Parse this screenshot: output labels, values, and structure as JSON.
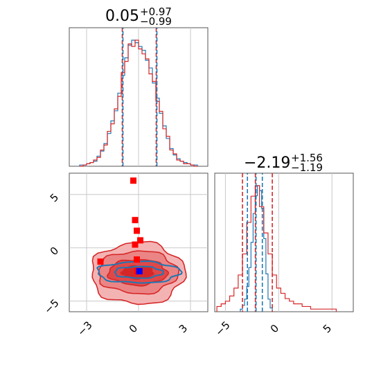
{
  "chart_data": [
    {
      "type": "histogram",
      "panel": "top-left marginal",
      "title": {
        "main": "0.05",
        "sup": "+0.97",
        "sub": "−0.99"
      },
      "median": 0.05,
      "quantile_lines": {
        "red": [
          -0.94,
          1.02
        ],
        "blue": [
          -0.94,
          1.02
        ]
      },
      "xlim": [
        -4,
        4
      ],
      "grid": true,
      "series": [
        {
          "color": "#1f77b4",
          "bins_x": [
            -3.4,
            -3.2,
            -3.0,
            -2.8,
            -2.6,
            -2.4,
            -2.2,
            -2.0,
            -1.8,
            -1.6,
            -1.4,
            -1.2,
            -1.0,
            -0.8,
            -0.6,
            -0.4,
            -0.2,
            0.0,
            0.2,
            0.4,
            0.6,
            0.8,
            1.0,
            1.2,
            1.4,
            1.6,
            1.8,
            2.0,
            2.2,
            2.4,
            2.6,
            2.8,
            3.0,
            3.2
          ],
          "counts": [
            1,
            1,
            2,
            3,
            4,
            8,
            12,
            18,
            26,
            36,
            44,
            58,
            72,
            86,
            96,
            100,
            98,
            95,
            92,
            84,
            78,
            66,
            54,
            42,
            32,
            22,
            14,
            9,
            6,
            4,
            3,
            2,
            1,
            1
          ]
        },
        {
          "color": "#d62728",
          "bins_x": [
            -3.4,
            -3.2,
            -3.0,
            -2.8,
            -2.6,
            -2.4,
            -2.2,
            -2.0,
            -1.8,
            -1.6,
            -1.4,
            -1.2,
            -1.0,
            -0.8,
            -0.6,
            -0.4,
            -0.2,
            0.0,
            0.2,
            0.4,
            0.6,
            0.8,
            1.0,
            1.2,
            1.4,
            1.6,
            1.8,
            2.0,
            2.2,
            2.4,
            2.6,
            2.8,
            3.0,
            3.2
          ],
          "counts": [
            0,
            1,
            2,
            3,
            5,
            7,
            13,
            17,
            28,
            34,
            46,
            56,
            75,
            84,
            98,
            96,
            101,
            94,
            90,
            86,
            74,
            68,
            52,
            44,
            30,
            24,
            13,
            10,
            5,
            4,
            2,
            2,
            1,
            0
          ]
        }
      ]
    },
    {
      "type": "histogram",
      "panel": "bottom-right marginal",
      "title": {
        "main": "−2.19",
        "sup": "+1.56",
        "sub": "−1.19"
      },
      "median": -2.19,
      "quantile_lines": {
        "red": [
          -3.4,
          -2.19,
          -0.6
        ],
        "blue": [
          -3.0,
          -2.19,
          -1.6
        ]
      },
      "xlim": [
        -6,
        7
      ],
      "xticks": [
        "−5",
        "0",
        "5"
      ],
      "grid": true,
      "series": [
        {
          "color": "#1f77b4",
          "bins_x": [
            -3.6,
            -3.4,
            -3.2,
            -3.0,
            -2.8,
            -2.6,
            -2.4,
            -2.2,
            -2.0,
            -1.8,
            -1.6,
            -1.4,
            -1.2,
            -1.0,
            -0.8
          ],
          "counts": [
            2,
            5,
            10,
            20,
            35,
            55,
            78,
            92,
            100,
            96,
            82,
            58,
            30,
            10,
            3
          ]
        },
        {
          "color": "#d62728",
          "bins_x": [
            -5.8,
            -5.4,
            -5.0,
            -4.6,
            -4.2,
            -3.8,
            -3.4,
            -3.0,
            -2.6,
            -2.2,
            -1.8,
            -1.4,
            -1.0,
            -0.6,
            -0.2,
            0.2,
            0.6,
            1.0,
            1.4,
            1.8,
            2.2,
            2.6,
            3.0,
            3.4,
            3.8,
            4.2,
            4.6,
            5.0
          ],
          "counts": [
            2,
            3,
            4,
            6,
            9,
            14,
            22,
            34,
            44,
            48,
            40,
            30,
            22,
            14,
            9,
            7,
            5,
            4,
            3,
            3,
            2,
            2,
            1,
            1,
            1,
            1,
            1,
            1
          ]
        }
      ]
    },
    {
      "type": "contour",
      "panel": "bottom-left joint",
      "xlim": [
        -4,
        4
      ],
      "ylim": [
        -6,
        7
      ],
      "xticks": [
        "−3",
        "0",
        "3"
      ],
      "yticks": [
        "−5",
        "0",
        "5"
      ],
      "grid": true,
      "red_contours": [
        {
          "cx": -0.05,
          "cy": -2.4,
          "rx": 2.7,
          "ry": 2.9,
          "fill": "#f4b3b3"
        },
        {
          "cx": -0.05,
          "cy": -2.3,
          "rx": 2.3,
          "ry": 2.0,
          "fill": "#eb8585"
        },
        {
          "cx": -0.05,
          "cy": -2.3,
          "rx": 1.7,
          "ry": 1.2,
          "fill": "#e04848"
        },
        {
          "cx": -0.05,
          "cy": -2.3,
          "rx": 0.9,
          "ry": 0.6,
          "fill": "#d62728"
        }
      ],
      "blue_contours": [
        {
          "cx": 0.0,
          "cy": -2.3,
          "rx": 2.4,
          "ry": 1.0
        },
        {
          "cx": 0.0,
          "cy": -2.3,
          "rx": 1.4,
          "ry": 0.55
        }
      ],
      "red_markers": [
        {
          "x": -0.3,
          "y": 6.3
        },
        {
          "x": -0.2,
          "y": 2.6
        },
        {
          "x": -0.1,
          "y": 1.6
        },
        {
          "x": 0.1,
          "y": 0.7
        },
        {
          "x": -0.2,
          "y": 0.3
        },
        {
          "x": -2.2,
          "y": -1.3
        },
        {
          "x": -0.1,
          "y": -1.1
        },
        {
          "x": -0.05,
          "y": -2.2
        }
      ],
      "blue_markers": [
        {
          "x": 0.05,
          "y": -2.2
        }
      ]
    }
  ]
}
